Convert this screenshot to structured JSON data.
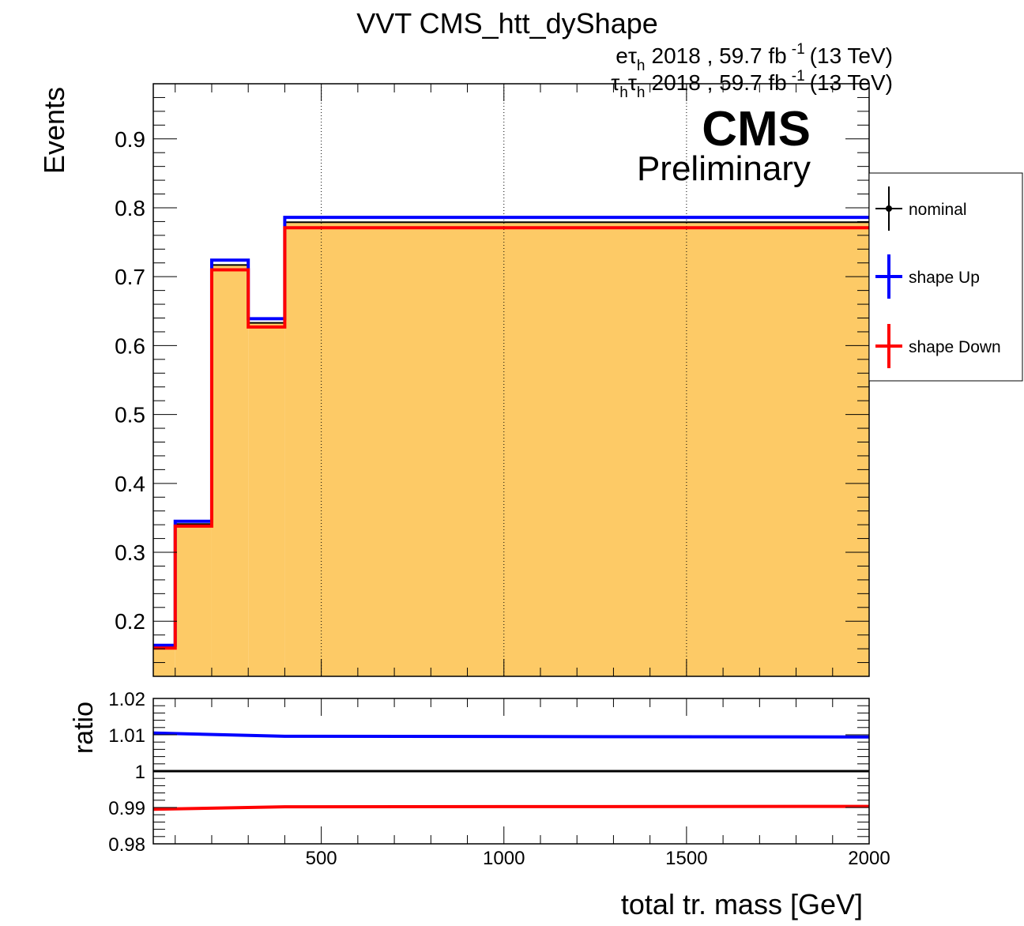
{
  "title": "VVT CMS_htt_dyShape",
  "lumi_lines": [
    {
      "channel": "eτ",
      "sub": "h",
      "text": "2018 , 59.7 fb",
      "sup": "-1",
      "energy": "(13 TeV)"
    },
    {
      "channel": "τ",
      "sub": "h",
      "channel2": "τ",
      "sub2": "h",
      "text": "2018 , 59.7 fb",
      "sup": "-1",
      "energy": "(13 TeV)"
    }
  ],
  "cms_label": "CMS",
  "cms_sublabel": "Preliminary",
  "colors": {
    "fill": "#fdca66",
    "nominal": "#000000",
    "up": "#0000ff",
    "down": "#ff0000"
  },
  "chart_data": [
    {
      "type": "bar",
      "ylabel": "Events",
      "xlim": [
        40,
        2000
      ],
      "ylim": [
        0.12,
        0.98
      ],
      "y_ticks": [
        "0.2",
        "0.3",
        "0.4",
        "0.5",
        "0.6",
        "0.7",
        "0.8",
        "0.9"
      ],
      "y_tick_values": [
        0.2,
        0.3,
        0.4,
        0.5,
        0.6,
        0.7,
        0.8,
        0.9
      ],
      "x_grid": [
        500,
        1000,
        1500
      ],
      "bin_edges": [
        40,
        100,
        200,
        300,
        400,
        2000
      ],
      "legend_position": "right",
      "series": [
        {
          "name": "nominal",
          "values": [
            0.163,
            0.341,
            0.717,
            0.633,
            0.779
          ]
        },
        {
          "name": "shape Up",
          "values": [
            0.165,
            0.345,
            0.724,
            0.639,
            0.786
          ]
        },
        {
          "name": "shape Down",
          "values": [
            0.161,
            0.338,
            0.71,
            0.627,
            0.771
          ]
        }
      ]
    },
    {
      "type": "line",
      "ylabel": "ratio",
      "xlabel": "total tr. mass [GeV]",
      "xlim": [
        40,
        2000
      ],
      "ylim": [
        0.98,
        1.02
      ],
      "y_ticks": [
        "0.98",
        "0.99",
        "1",
        "1.01",
        "1.02"
      ],
      "y_tick_values": [
        0.98,
        0.99,
        1.0,
        1.01,
        1.02
      ],
      "x_ticks": [
        "500",
        "1000",
        "1500",
        "2000"
      ],
      "x_tick_values": [
        500,
        1000,
        1500,
        2000
      ],
      "x": [
        40,
        400,
        2000
      ],
      "series": [
        {
          "name": "nominal",
          "values": [
            1.0,
            1.0,
            1.0
          ]
        },
        {
          "name": "shape Up",
          "values": [
            1.0105,
            1.0096,
            1.0094
          ]
        },
        {
          "name": "shape Down",
          "values": [
            0.9895,
            0.9902,
            0.9903
          ]
        }
      ]
    }
  ]
}
